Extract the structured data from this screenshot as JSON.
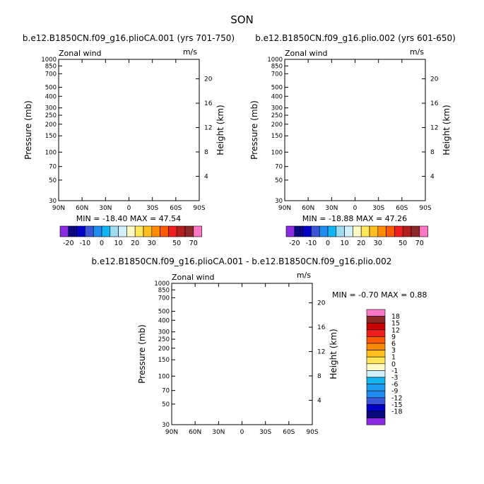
{
  "title": "SON",
  "chart_data": [
    {
      "type": "heatmap",
      "title": "b.e12.B1850CN.f09_g16.plioCA.001 (yrs 701-750)",
      "variable": "Zonal wind",
      "units": "m/s",
      "ylabel": "Pressure (mb)",
      "y2label": "Height (km)",
      "minmax_text": "MIN = -18.40   MAX =  47.54",
      "min": -18.4,
      "max": 47.54,
      "x_ticks": [
        "90N",
        "60N",
        "30N",
        "0",
        "30S",
        "60S",
        "90S"
      ],
      "xlim": [
        90,
        -90
      ],
      "y_ticks": [
        "30",
        "50",
        "70",
        "100",
        "150",
        "200",
        "250",
        "300",
        "400",
        "500",
        "700",
        "850",
        "1000"
      ],
      "y_scale": "log",
      "ylim": [
        1000,
        30
      ],
      "y2_ticks": [
        "4",
        "8",
        "12",
        "16",
        "20"
      ],
      "levels": [
        -20,
        -15,
        -10,
        -5,
        0,
        5,
        10,
        15,
        20,
        25,
        30,
        35,
        40,
        50,
        60,
        70
      ],
      "colorbar_labels": [
        "-20",
        "-10",
        "0",
        "10",
        "20",
        "30",
        "50",
        "70"
      ],
      "colorbar_orientation": "horizontal"
    },
    {
      "type": "heatmap",
      "title": "b.e12.B1850CN.f09_g16.plio.002 (yrs 601-650)",
      "variable": "Zonal wind",
      "units": "m/s",
      "ylabel": "Pressure (mb)",
      "y2label": "Height (km)",
      "minmax_text": "MIN = -18.88   MAX =  47.26",
      "min": -18.88,
      "max": 47.26,
      "x_ticks": [
        "90N",
        "60N",
        "30N",
        "0",
        "30S",
        "60S",
        "90S"
      ],
      "xlim": [
        90,
        -90
      ],
      "y_ticks": [
        "30",
        "50",
        "70",
        "100",
        "150",
        "200",
        "250",
        "300",
        "400",
        "500",
        "700",
        "850",
        "1000"
      ],
      "y_scale": "log",
      "ylim": [
        1000,
        30
      ],
      "y2_ticks": [
        "4",
        "8",
        "12",
        "16",
        "20"
      ],
      "levels": [
        -20,
        -15,
        -10,
        -5,
        0,
        5,
        10,
        15,
        20,
        25,
        30,
        35,
        40,
        50,
        60,
        70
      ],
      "colorbar_labels": [
        "-20",
        "-10",
        "0",
        "10",
        "20",
        "30",
        "50",
        "70"
      ],
      "colorbar_orientation": "horizontal"
    },
    {
      "type": "heatmap",
      "title": "b.e12.B1850CN.f09_g16.plioCA.001 - b.e12.B1850CN.f09_g16.plio.002",
      "variable": "Zonal wind",
      "units": "m/s",
      "ylabel": "Pressure (mb)",
      "y2label": "Height (km)",
      "minmax_text": "MIN = -0.70  MAX =  0.88",
      "min": -0.7,
      "max": 0.88,
      "x_ticks": [
        "90N",
        "60N",
        "30N",
        "0",
        "30S",
        "60S",
        "90S"
      ],
      "xlim": [
        90,
        -90
      ],
      "y_ticks": [
        "30",
        "50",
        "70",
        "100",
        "150",
        "200",
        "250",
        "300",
        "400",
        "500",
        "700",
        "850",
        "1000"
      ],
      "y_scale": "log",
      "ylim": [
        1000,
        30
      ],
      "y2_ticks": [
        "4",
        "8",
        "12",
        "16",
        "20"
      ],
      "levels": [
        -18,
        -15,
        -12,
        -9,
        -6,
        -3,
        -1,
        0,
        1,
        3,
        6,
        9,
        12,
        15,
        18
      ],
      "colorbar_labels": [
        "18",
        "15",
        "12",
        "9",
        "6",
        "3",
        "1",
        "0",
        "-1",
        "-3",
        "-6",
        "-9",
        "-12",
        "-15",
        "-18"
      ],
      "colorbar_orientation": "vertical"
    }
  ],
  "colors": {
    "full_field_palette": [
      "#8a2be2",
      "#0a0a80",
      "#0000c8",
      "#3a55d8",
      "#1e8cf0",
      "#0fb4f0",
      "#a0dcf0",
      "#d2f0fa",
      "#fffac8",
      "#ffe65a",
      "#ffbe1e",
      "#ff8c00",
      "#ff5a00",
      "#f01e1e",
      "#b41e1e",
      "#8c2828",
      "#ff78c8"
    ],
    "diff_palette": [
      "#8a2be2",
      "#0a0a80",
      "#0000c8",
      "#3a55d8",
      "#1e8cf0",
      "#1e9cf0",
      "#0fb4f0",
      "#d2f0fa",
      "#fffac8",
      "#ffe65a",
      "#ffbe1e",
      "#ff8c00",
      "#ff5a00",
      "#f01e1e",
      "#c80000",
      "#8c2828",
      "#ff78c8"
    ]
  }
}
